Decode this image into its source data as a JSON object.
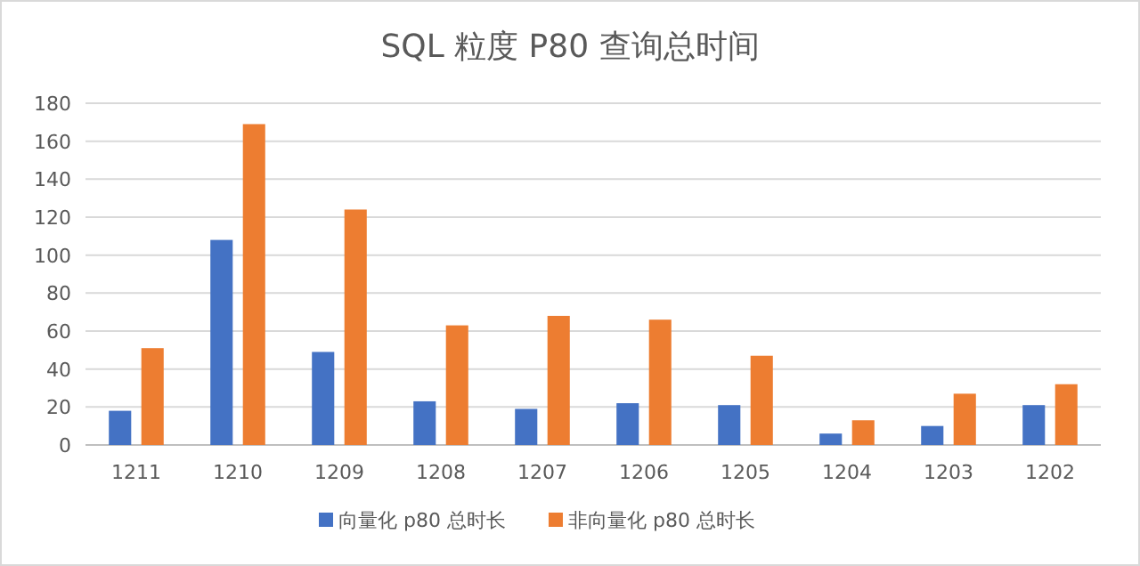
{
  "chart_data": {
    "type": "bar",
    "title": "SQL 粒度 P80 查询总时间",
    "categories": [
      "1211",
      "1210",
      "1209",
      "1208",
      "1207",
      "1206",
      "1205",
      "1204",
      "1203",
      "1202"
    ],
    "series": [
      {
        "name": "向量化 p80 总时长",
        "color": "#4472c4",
        "values": [
          18,
          108,
          49,
          23,
          19,
          22,
          21,
          6,
          10,
          21
        ]
      },
      {
        "name": "非向量化 p80 总时长",
        "color": "#ed7d31",
        "values": [
          51,
          169,
          124,
          63,
          68,
          66,
          47,
          13,
          27,
          32
        ]
      }
    ],
    "ylim": [
      0,
      180
    ],
    "yticks": [
      0,
      20,
      40,
      60,
      80,
      100,
      120,
      140,
      160,
      180
    ],
    "grid": "y",
    "legend": "bottom"
  }
}
